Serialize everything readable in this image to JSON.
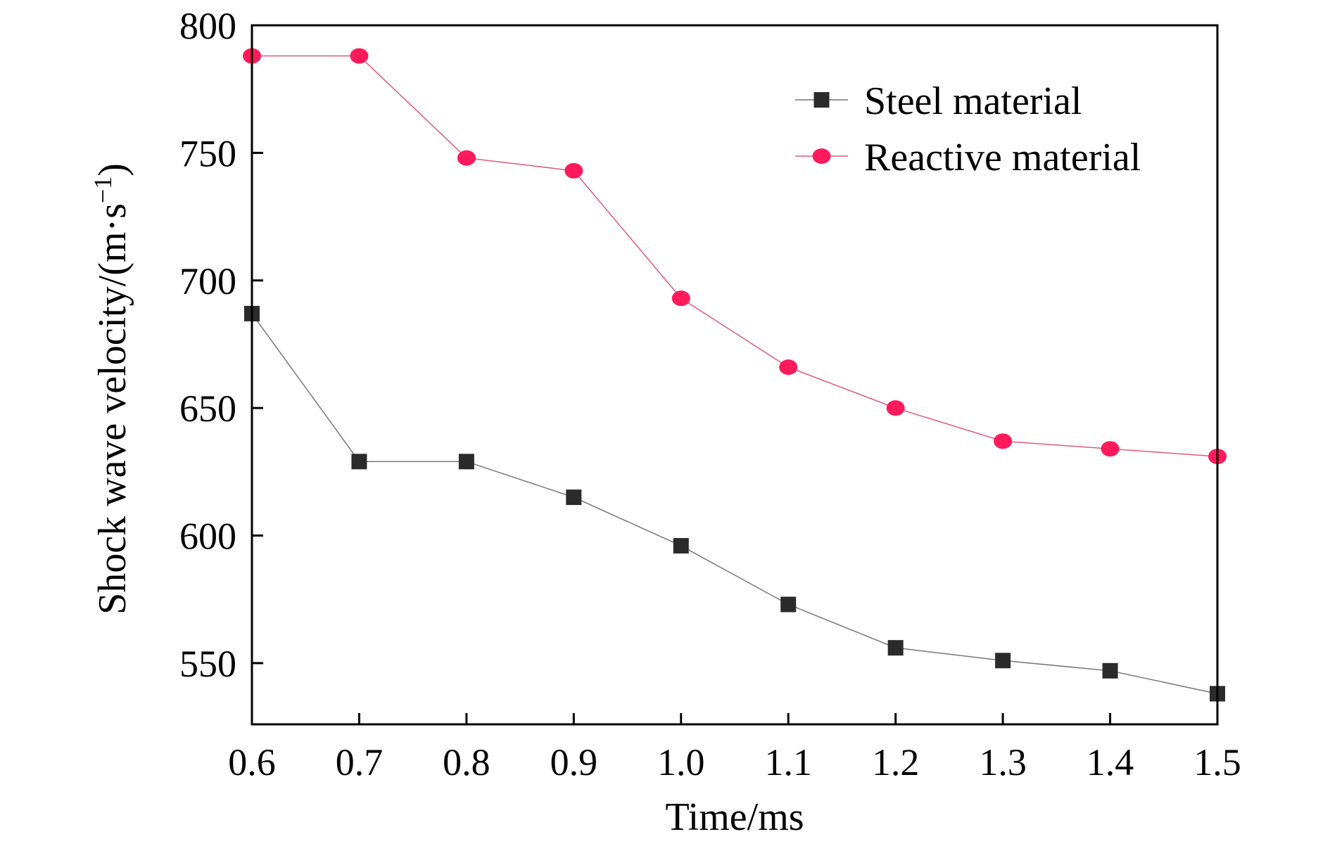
{
  "chart_data": {
    "type": "line",
    "title": "",
    "xlabel": "Time/ms",
    "ylabel_main": "Shock wave velocity/(m·s",
    "ylabel_sup": "−1",
    "ylabel_close": ")",
    "xlim": [
      0.6,
      1.5
    ],
    "ylim": [
      526,
      800
    ],
    "x_ticks": [
      "0.6",
      "0.7",
      "0.8",
      "0.9",
      "1.0",
      "1.1",
      "1.2",
      "1.3",
      "1.4",
      "1.5"
    ],
    "y_ticks": [
      "550",
      "600",
      "650",
      "700",
      "750",
      "800"
    ],
    "x": [
      0.6,
      0.7,
      0.8,
      0.9,
      1.0,
      1.1,
      1.2,
      1.3,
      1.4,
      1.5
    ],
    "grid": false,
    "legend_position": "top-right",
    "series": [
      {
        "name": "Steel material",
        "marker": "square",
        "color": "#2b2b2b",
        "values": [
          687,
          629,
          629,
          615,
          596,
          573,
          556,
          551,
          547,
          538
        ]
      },
      {
        "name": "Reactive material",
        "marker": "circle",
        "color": "#ff1a5c",
        "values": [
          788,
          788,
          748,
          743,
          693,
          666,
          650,
          637,
          634,
          631
        ]
      }
    ]
  }
}
